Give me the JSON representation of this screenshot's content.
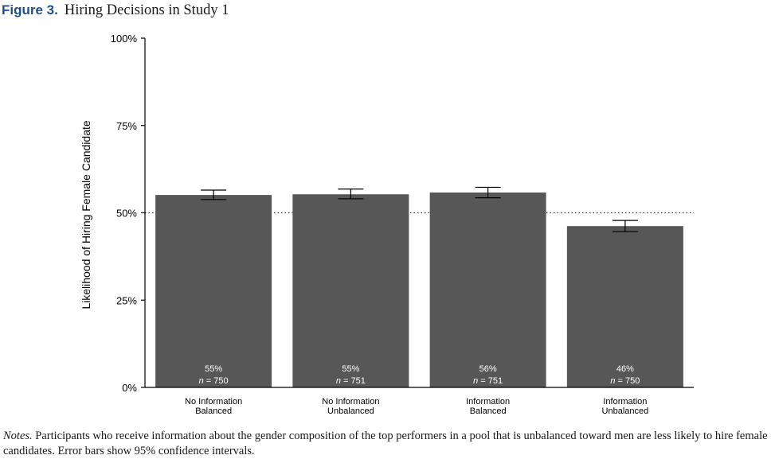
{
  "figure": {
    "label": "Figure 3.",
    "title": "Hiring Decisions in Study 1"
  },
  "notes": {
    "label": "Notes.",
    "text": "Participants who receive information about the gender composition of the top performers in a pool that is unbalanced toward men are less likely to hire female candidates. Error bars show 95% confidence intervals."
  },
  "chart_data": {
    "type": "bar",
    "categories": [
      [
        "No Information",
        "Balanced"
      ],
      [
        "No Information",
        "Unbalanced"
      ],
      [
        "Information",
        "Balanced"
      ],
      [
        "Information",
        "Unbalanced"
      ]
    ],
    "values": [
      55.1,
      55.3,
      55.8,
      46.2
    ],
    "error_low": [
      53.8,
      54.0,
      54.3,
      44.6
    ],
    "error_high": [
      56.5,
      56.8,
      57.3,
      47.8
    ],
    "value_labels": [
      "55%",
      "55%",
      "56%",
      "46%"
    ],
    "n_labels": [
      "= 750",
      "= 751",
      "= 751",
      "= 750"
    ],
    "n_symbol": "n",
    "ylabel": "Likelihood of Hiring Female Candidate",
    "ylim": [
      0,
      100
    ],
    "yticks": [
      0,
      25,
      50,
      75,
      100
    ],
    "ytick_labels": [
      "0%",
      "25%",
      "50%",
      "75%",
      "100%"
    ],
    "reference_line": 50,
    "bar_color": "#575757",
    "value_label_color": "#ffffff",
    "grid": false
  }
}
